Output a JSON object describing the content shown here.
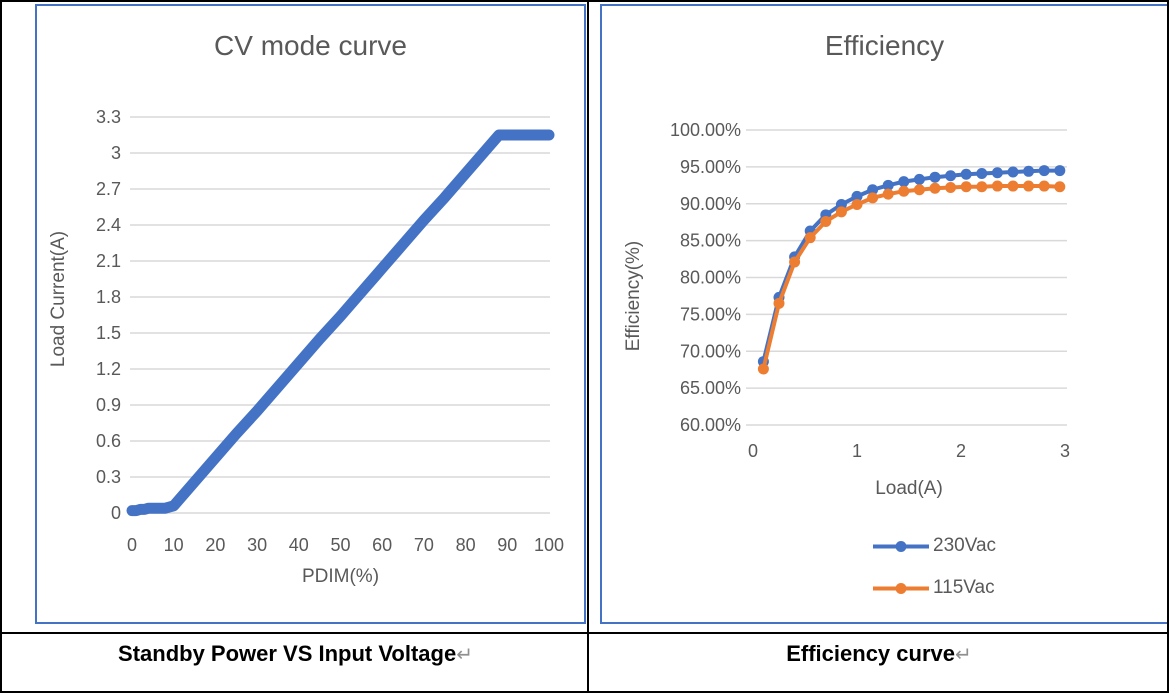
{
  "colors": {
    "accent_blue": "#4472C4",
    "accent_orange": "#ED7D31",
    "grid": "#D9D9D9",
    "axis_text": "#595959",
    "caption_text": "#000000",
    "return_mark": "#909090",
    "table_border": "#000000",
    "chart_border": "#4472C4"
  },
  "captions": {
    "left": {
      "text": "Standby Power VS Input Voltage",
      "mark": "↵"
    },
    "right": {
      "text": "Efficiency curve",
      "mark": "↵"
    }
  },
  "chart_data": [
    {
      "type": "scatter",
      "title": "CV mode curve",
      "xlabel": "PDIM(%)",
      "ylabel": "Load Current(A)",
      "xlim": [
        0,
        100
      ],
      "ylim": [
        0,
        3.3
      ],
      "grid": "horizontal",
      "legend_position": "none",
      "x_ticks": {
        "values": [
          0,
          10,
          20,
          30,
          40,
          50,
          60,
          70,
          80,
          90,
          100
        ],
        "labels": [
          "0",
          "10",
          "20",
          "30",
          "40",
          "50",
          "60",
          "70",
          "80",
          "90",
          "100"
        ]
      },
      "y_ticks": {
        "values": [
          0,
          0.3,
          0.6,
          0.9,
          1.2,
          1.5,
          1.8,
          2.1,
          2.4,
          2.7,
          3,
          3.3
        ],
        "labels": [
          "0",
          "0.3",
          "0.6",
          "0.9",
          "1.2",
          "1.5",
          "1.8",
          "2.1",
          "2.4",
          "2.7",
          "3",
          "3.3"
        ]
      },
      "series": [
        {
          "name": "Load Current",
          "color": "#4472C4",
          "x": [
            0,
            1,
            2,
            3,
            4,
            5,
            6,
            7,
            8,
            9,
            10,
            15,
            20,
            25,
            30,
            35,
            40,
            45,
            50,
            55,
            60,
            65,
            70,
            75,
            80,
            85,
            88,
            90,
            92,
            95,
            100
          ],
          "y": [
            0.02,
            0.02,
            0.03,
            0.03,
            0.04,
            0.04,
            0.04,
            0.04,
            0.04,
            0.05,
            0.06,
            0.26,
            0.46,
            0.66,
            0.85,
            1.05,
            1.25,
            1.45,
            1.64,
            1.84,
            2.04,
            2.24,
            2.44,
            2.63,
            2.83,
            3.03,
            3.15,
            3.15,
            3.15,
            3.15,
            3.15
          ]
        }
      ]
    },
    {
      "type": "line",
      "title": "Efficiency",
      "xlabel": "Load(A)",
      "ylabel": "Efficiency(%)",
      "xlim": [
        0,
        3
      ],
      "ylim": [
        60,
        100
      ],
      "grid": "horizontal",
      "legend_position": "bottom",
      "x_ticks": {
        "values": [
          0,
          1,
          2,
          3
        ],
        "labels": [
          "0",
          "1",
          "2",
          "3"
        ]
      },
      "y_ticks": {
        "values": [
          60,
          65,
          70,
          75,
          80,
          85,
          90,
          95,
          100
        ],
        "labels": [
          "60.00%",
          "65.00%",
          "70.00%",
          "75.00%",
          "80.00%",
          "85.00%",
          "90.00%",
          "95.00%",
          "100.00%"
        ]
      },
      "series": [
        {
          "name": "230Vac",
          "color": "#4472C4",
          "x": [
            0.1,
            0.25,
            0.4,
            0.55,
            0.7,
            0.85,
            1.0,
            1.15,
            1.3,
            1.45,
            1.6,
            1.75,
            1.9,
            2.05,
            2.2,
            2.35,
            2.5,
            2.65,
            2.8,
            2.95
          ],
          "y": [
            68.6,
            77.3,
            82.8,
            86.3,
            88.5,
            89.9,
            91.0,
            91.9,
            92.5,
            93.0,
            93.3,
            93.6,
            93.8,
            94.0,
            94.1,
            94.2,
            94.3,
            94.4,
            94.5,
            94.5
          ]
        },
        {
          "name": "115Vac",
          "color": "#ED7D31",
          "x": [
            0.1,
            0.25,
            0.4,
            0.55,
            0.7,
            0.85,
            1.0,
            1.15,
            1.3,
            1.45,
            1.6,
            1.75,
            1.9,
            2.05,
            2.2,
            2.35,
            2.5,
            2.65,
            2.8,
            2.95
          ],
          "y": [
            67.6,
            76.5,
            82.1,
            85.4,
            87.6,
            88.9,
            89.9,
            90.8,
            91.3,
            91.7,
            91.9,
            92.1,
            92.2,
            92.3,
            92.3,
            92.4,
            92.4,
            92.4,
            92.4,
            92.3
          ]
        }
      ]
    }
  ]
}
